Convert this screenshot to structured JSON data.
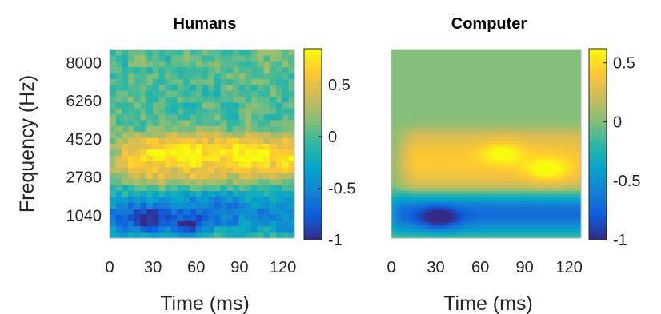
{
  "colormap": [
    "#352a87",
    "#0f5cdd",
    "#1481d6",
    "#06a4ca",
    "#2eb7a4",
    "#87bf77",
    "#d1bb59",
    "#fec832",
    "#f9fb0e"
  ],
  "chart_data": [
    {
      "type": "heatmap",
      "title": "Humans",
      "xlabel": "Time (ms)",
      "ylabel": "Frequency (Hz)",
      "xlim": [
        0,
        128
      ],
      "x_ticks": [
        0,
        30,
        60,
        90,
        120
      ],
      "y_ticks": [
        1040,
        2780,
        4520,
        6260,
        8000
      ],
      "clim": [
        -1,
        0.85
      ],
      "colorbar_ticks": [
        0.5,
        0,
        -0.5,
        -1
      ],
      "grid": false,
      "rows": 32,
      "cols": 30,
      "features": [
        {
          "kind": "background",
          "value": 0.02
        },
        {
          "kind": "positive_band",
          "time_ms": [
            20,
            125
          ],
          "freq_hz": [
            2780,
            4520
          ],
          "peak": 0.62
        },
        {
          "kind": "positive_peak",
          "time_ms": 50,
          "freq_hz": 3900,
          "value": 0.7
        },
        {
          "kind": "positive_peak",
          "time_ms": 95,
          "freq_hz": 3800,
          "value": 0.65
        },
        {
          "kind": "negative_band",
          "time_ms": [
            0,
            128
          ],
          "freq_hz": [
            400,
            1900
          ],
          "peak": -0.55
        },
        {
          "kind": "negative_peak",
          "time_ms": 25,
          "freq_hz": 800,
          "value": -0.9
        },
        {
          "kind": "negative_peak",
          "time_ms": 55,
          "freq_hz": 450,
          "value": -0.95
        }
      ]
    },
    {
      "type": "heatmap",
      "title": "Computer",
      "xlabel": "Time (ms)",
      "ylabel": "",
      "xlim": [
        0,
        128
      ],
      "x_ticks": [
        0,
        30,
        60,
        90,
        120
      ],
      "y_ticks": [],
      "clim": [
        -1,
        0.62
      ],
      "colorbar_ticks": [
        0.5,
        0,
        -0.5,
        -1
      ],
      "grid": false,
      "rows": 60,
      "cols": 60,
      "features": [
        {
          "kind": "background",
          "value": 0.0
        },
        {
          "kind": "positive_band",
          "time_ms": [
            20,
            120
          ],
          "freq_hz": [
            2400,
            4600
          ],
          "peak": 0.42
        },
        {
          "kind": "positive_peak",
          "time_ms": 75,
          "freq_hz": 3900,
          "value": 0.52
        },
        {
          "kind": "positive_peak",
          "time_ms": 105,
          "freq_hz": 3100,
          "value": 0.6
        },
        {
          "kind": "negative_band",
          "time_ms": [
            10,
            128
          ],
          "freq_hz": [
            400,
            1800
          ],
          "peak": -0.7
        },
        {
          "kind": "negative_peak",
          "time_ms": 32,
          "freq_hz": 900,
          "value": -0.95
        }
      ]
    }
  ]
}
